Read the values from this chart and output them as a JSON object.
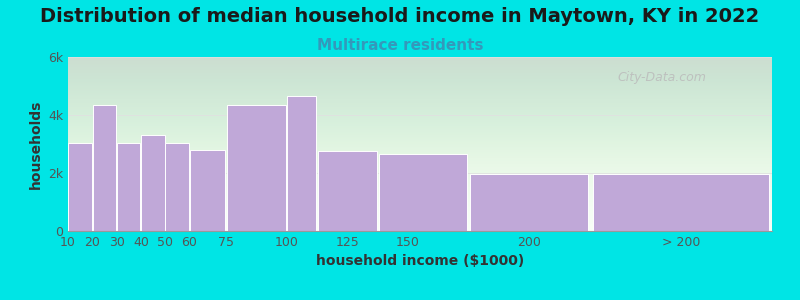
{
  "title": "Distribution of median household income in Maytown, KY in 2022",
  "subtitle": "Multirace residents",
  "xlabel": "household income ($1000)",
  "ylabel": "households",
  "background_outer": "#00e5e5",
  "bar_color": "#c0a8d8",
  "bar_edge_color": "#ffffff",
  "title_fontsize": 14,
  "subtitle_fontsize": 11,
  "axis_label_fontsize": 10,
  "tick_fontsize": 9,
  "title_color": "#1a1a1a",
  "subtitle_color": "#3399bb",
  "axis_label_color": "#333333",
  "tick_color": "#555555",
  "watermark_text": "City-Data.com",
  "watermark_color": "#bbbbbb",
  "bar_lefts": [
    10,
    20,
    30,
    40,
    50,
    60,
    75,
    100,
    112.5,
    137.5,
    175,
    225
  ],
  "bar_widths": [
    10,
    10,
    10,
    10,
    10,
    15,
    25,
    12.5,
    25,
    37.5,
    50,
    75
  ],
  "bar_heights": [
    3050,
    4350,
    3050,
    3300,
    3050,
    2800,
    4350,
    4650,
    2750,
    2650,
    1950,
    1950
  ],
  "xtick_positions": [
    10,
    20,
    30,
    40,
    50,
    60,
    75,
    100,
    125,
    150,
    200
  ],
  "xtick_labels": [
    "10",
    "20",
    "30",
    "40",
    "50",
    "60",
    "75",
    "100",
    "125",
    "150",
    "200"
  ],
  "xtick_extra_pos": 262.5,
  "xtick_extra_label": "> 200",
  "ylim": [
    0,
    6000
  ],
  "yticks": [
    0,
    2000,
    4000,
    6000
  ],
  "ytick_labels": [
    "0",
    "2k",
    "4k",
    "6k"
  ],
  "xlim": [
    10,
    300
  ]
}
